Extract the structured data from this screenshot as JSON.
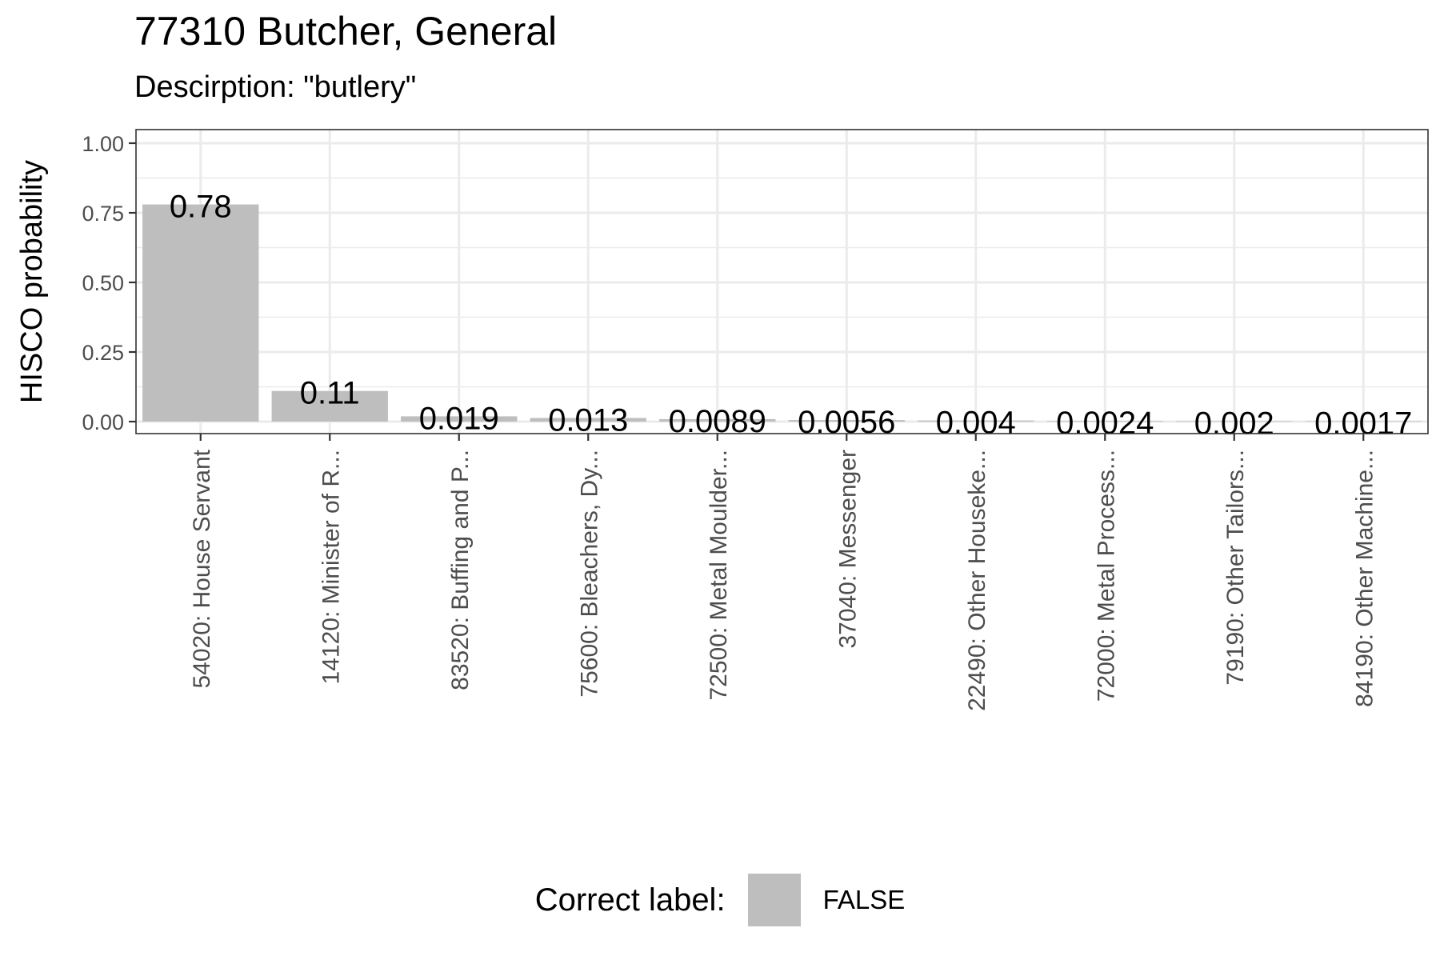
{
  "chart_data": {
    "type": "bar",
    "title": "77310 Butcher, General",
    "subtitle": "Descirption: \"butlery\"",
    "ylabel": "HISCO probability",
    "xlabel": "",
    "ylim": [
      0,
      1
    ],
    "yticks": [
      0,
      0.25,
      0.5,
      0.75,
      1
    ],
    "ytick_labels": [
      "0.00",
      "0.25",
      "0.50",
      "0.75",
      "1.00"
    ],
    "grid": true,
    "legend_position": "bottom",
    "categories": [
      "54020: House Servant",
      "14120: Minister of R...",
      "83520: Buffing and P...",
      "75600: Bleachers, Dy...",
      "72500: Metal Moulder...",
      "37040: Messenger",
      "22490: Other Houseke...",
      "72000: Metal Process...",
      "79190: Other Tailors...",
      "84190: Other Machine..."
    ],
    "values": [
      0.78,
      0.11,
      0.019,
      0.013,
      0.0089,
      0.0056,
      0.004,
      0.0024,
      0.002,
      0.0017
    ],
    "value_labels": [
      "0.78",
      "0.11",
      "0.019",
      "0.013",
      "0.0089",
      "0.0056",
      "0.004",
      "0.0024",
      "0.002",
      "0.0017"
    ],
    "fill_color": "#bebebe",
    "legend": {
      "title": "Correct label:",
      "entries": [
        {
          "label": "FALSE",
          "color": "#bebebe"
        }
      ]
    }
  }
}
